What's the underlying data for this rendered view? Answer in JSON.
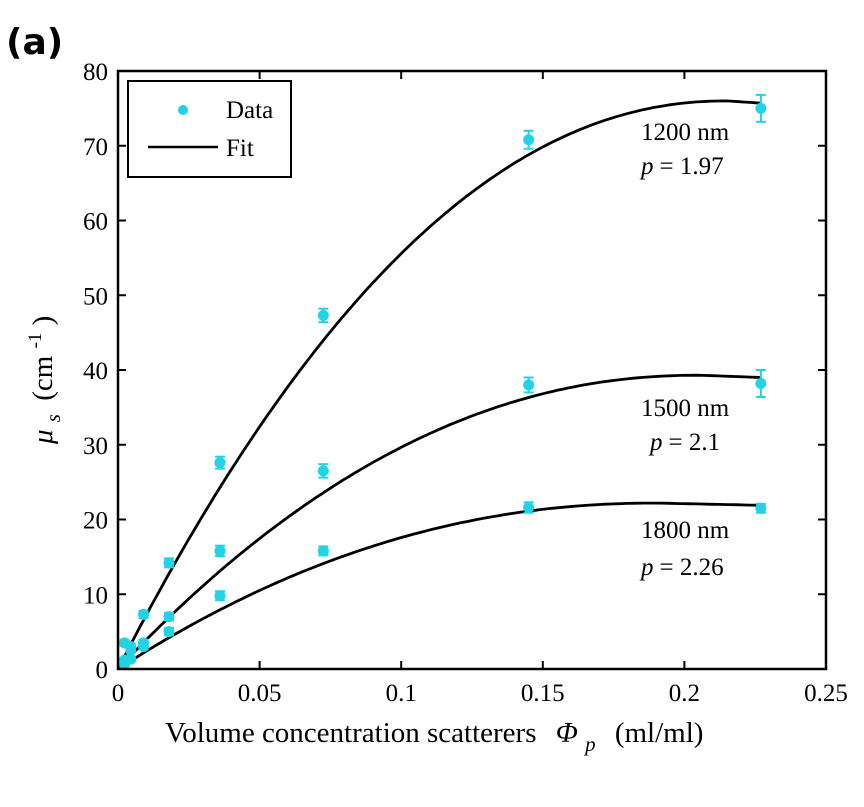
{
  "panel_label": "(a)",
  "chart_data": {
    "type": "scatter",
    "title": "",
    "xlabel": "Volume concentration scatterers",
    "xlabel_symbol": "Φ",
    "xlabel_subscript": "p",
    "xlabel_unit": "(ml/ml)",
    "ylabel_symbol": "μ",
    "ylabel_subscript": "s",
    "ylabel_unit_pre": "(cm",
    "ylabel_unit_exp": "-1",
    "ylabel_unit_post": ")",
    "xlim": [
      0,
      0.25
    ],
    "ylim": [
      0,
      80
    ],
    "xticks": [
      0,
      0.05,
      0.1,
      0.15,
      0.2,
      0.25
    ],
    "xtick_labels": [
      "0",
      "0.05",
      "0.1",
      "0.15",
      "0.2",
      "0.25"
    ],
    "yticks": [
      0,
      10,
      20,
      30,
      40,
      50,
      60,
      70,
      80
    ],
    "ytick_labels": [
      "0",
      "10",
      "20",
      "30",
      "40",
      "50",
      "60",
      "70",
      "80"
    ],
    "legend": {
      "position": "top-left",
      "entries": [
        {
          "label": "Data",
          "marker": "dot",
          "color": "#22d3e6"
        },
        {
          "label": "Fit",
          "marker": "line",
          "color": "#000000"
        }
      ]
    },
    "marker_color": "#22d3e6",
    "fit_color": "#000000",
    "series": [
      {
        "name": "1200 nm",
        "size_label": "1200 nm",
        "p_label": "p",
        "p_value": "= 1.97",
        "data": [
          {
            "x": 0.0023,
            "y": 3.5,
            "err": 0.4
          },
          {
            "x": 0.0045,
            "y": 3.0,
            "err": 0.4
          },
          {
            "x": 0.009,
            "y": 7.3,
            "err": 0.5
          },
          {
            "x": 0.018,
            "y": 14.2,
            "err": 0.6
          },
          {
            "x": 0.036,
            "y": 27.6,
            "err": 0.8
          },
          {
            "x": 0.0725,
            "y": 47.3,
            "err": 0.9
          },
          {
            "x": 0.145,
            "y": 70.8,
            "err": 1.2
          },
          {
            "x": 0.227,
            "y": 75.0,
            "err": 1.8
          }
        ],
        "fit": {
          "x_max": 0.227,
          "y_peak": 76.0,
          "x_peak": 0.215
        }
      },
      {
        "name": "1500 nm",
        "size_label": "1500 nm",
        "p_label": "p",
        "p_value": "= 2.1",
        "data": [
          {
            "x": 0.0023,
            "y": 1.2,
            "err": 0.3
          },
          {
            "x": 0.0045,
            "y": 2.5,
            "err": 0.3
          },
          {
            "x": 0.009,
            "y": 3.5,
            "err": 0.4
          },
          {
            "x": 0.018,
            "y": 7.0,
            "err": 0.5
          },
          {
            "x": 0.036,
            "y": 15.8,
            "err": 0.7
          },
          {
            "x": 0.0725,
            "y": 26.5,
            "err": 0.9
          },
          {
            "x": 0.145,
            "y": 38.0,
            "err": 1.0
          },
          {
            "x": 0.227,
            "y": 38.2,
            "err": 1.8
          }
        ],
        "fit": {
          "x_max": 0.227,
          "y_peak": 39.3,
          "x_peak": 0.205
        }
      },
      {
        "name": "1800 nm",
        "size_label": "1800 nm",
        "p_label": "p",
        "p_value": "= 2.26",
        "data": [
          {
            "x": 0.0023,
            "y": 0.6,
            "err": 0.3
          },
          {
            "x": 0.0045,
            "y": 1.3,
            "err": 0.3
          },
          {
            "x": 0.009,
            "y": 3.0,
            "err": 0.4
          },
          {
            "x": 0.018,
            "y": 5.0,
            "err": 0.5
          },
          {
            "x": 0.036,
            "y": 9.8,
            "err": 0.6
          },
          {
            "x": 0.0725,
            "y": 15.8,
            "err": 0.6
          },
          {
            "x": 0.145,
            "y": 21.6,
            "err": 0.7
          },
          {
            "x": 0.227,
            "y": 21.5,
            "err": 0.6
          }
        ],
        "fit": {
          "x_max": 0.227,
          "y_peak": 22.2,
          "x_peak": 0.19
        }
      }
    ]
  }
}
